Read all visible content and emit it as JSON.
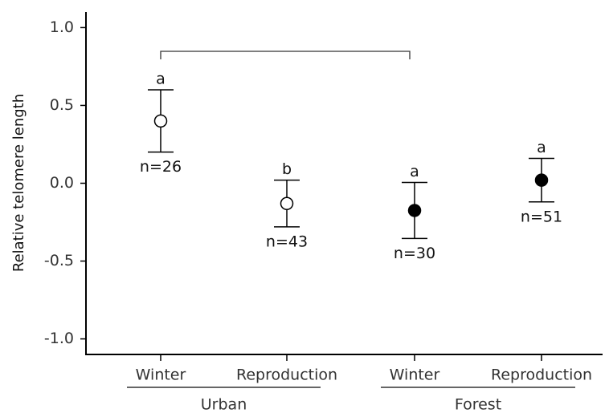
{
  "chart_data": {
    "type": "errorbar",
    "y_label": "Relative telomere length",
    "categories": [
      "Winter",
      "Reproduction",
      "Winter",
      "Reproduction"
    ],
    "groups": [
      "Urban",
      "Forest"
    ],
    "values": [
      0.4,
      -0.13,
      -0.175,
      0.02
    ],
    "errors": [
      0.2,
      0.15,
      0.18,
      0.14
    ],
    "marker_fills": [
      "#ffffff",
      "#ffffff",
      "#000000",
      "#000000"
    ],
    "letters": [
      "a",
      "b",
      "a",
      "a"
    ],
    "n_labels": [
      "n=26",
      "n=43",
      "n=30",
      "n=51"
    ],
    "ylim": [
      -1.1,
      1.1
    ],
    "yticks": [
      {
        "value": -1,
        "label": "-1.0"
      },
      {
        "value": -0.5,
        "label": "-0.5"
      },
      {
        "value": 0,
        "label": "0.0"
      },
      {
        "value": 0.5,
        "label": "0.5"
      },
      {
        "value": 1,
        "label": "1.0"
      }
    ]
  }
}
